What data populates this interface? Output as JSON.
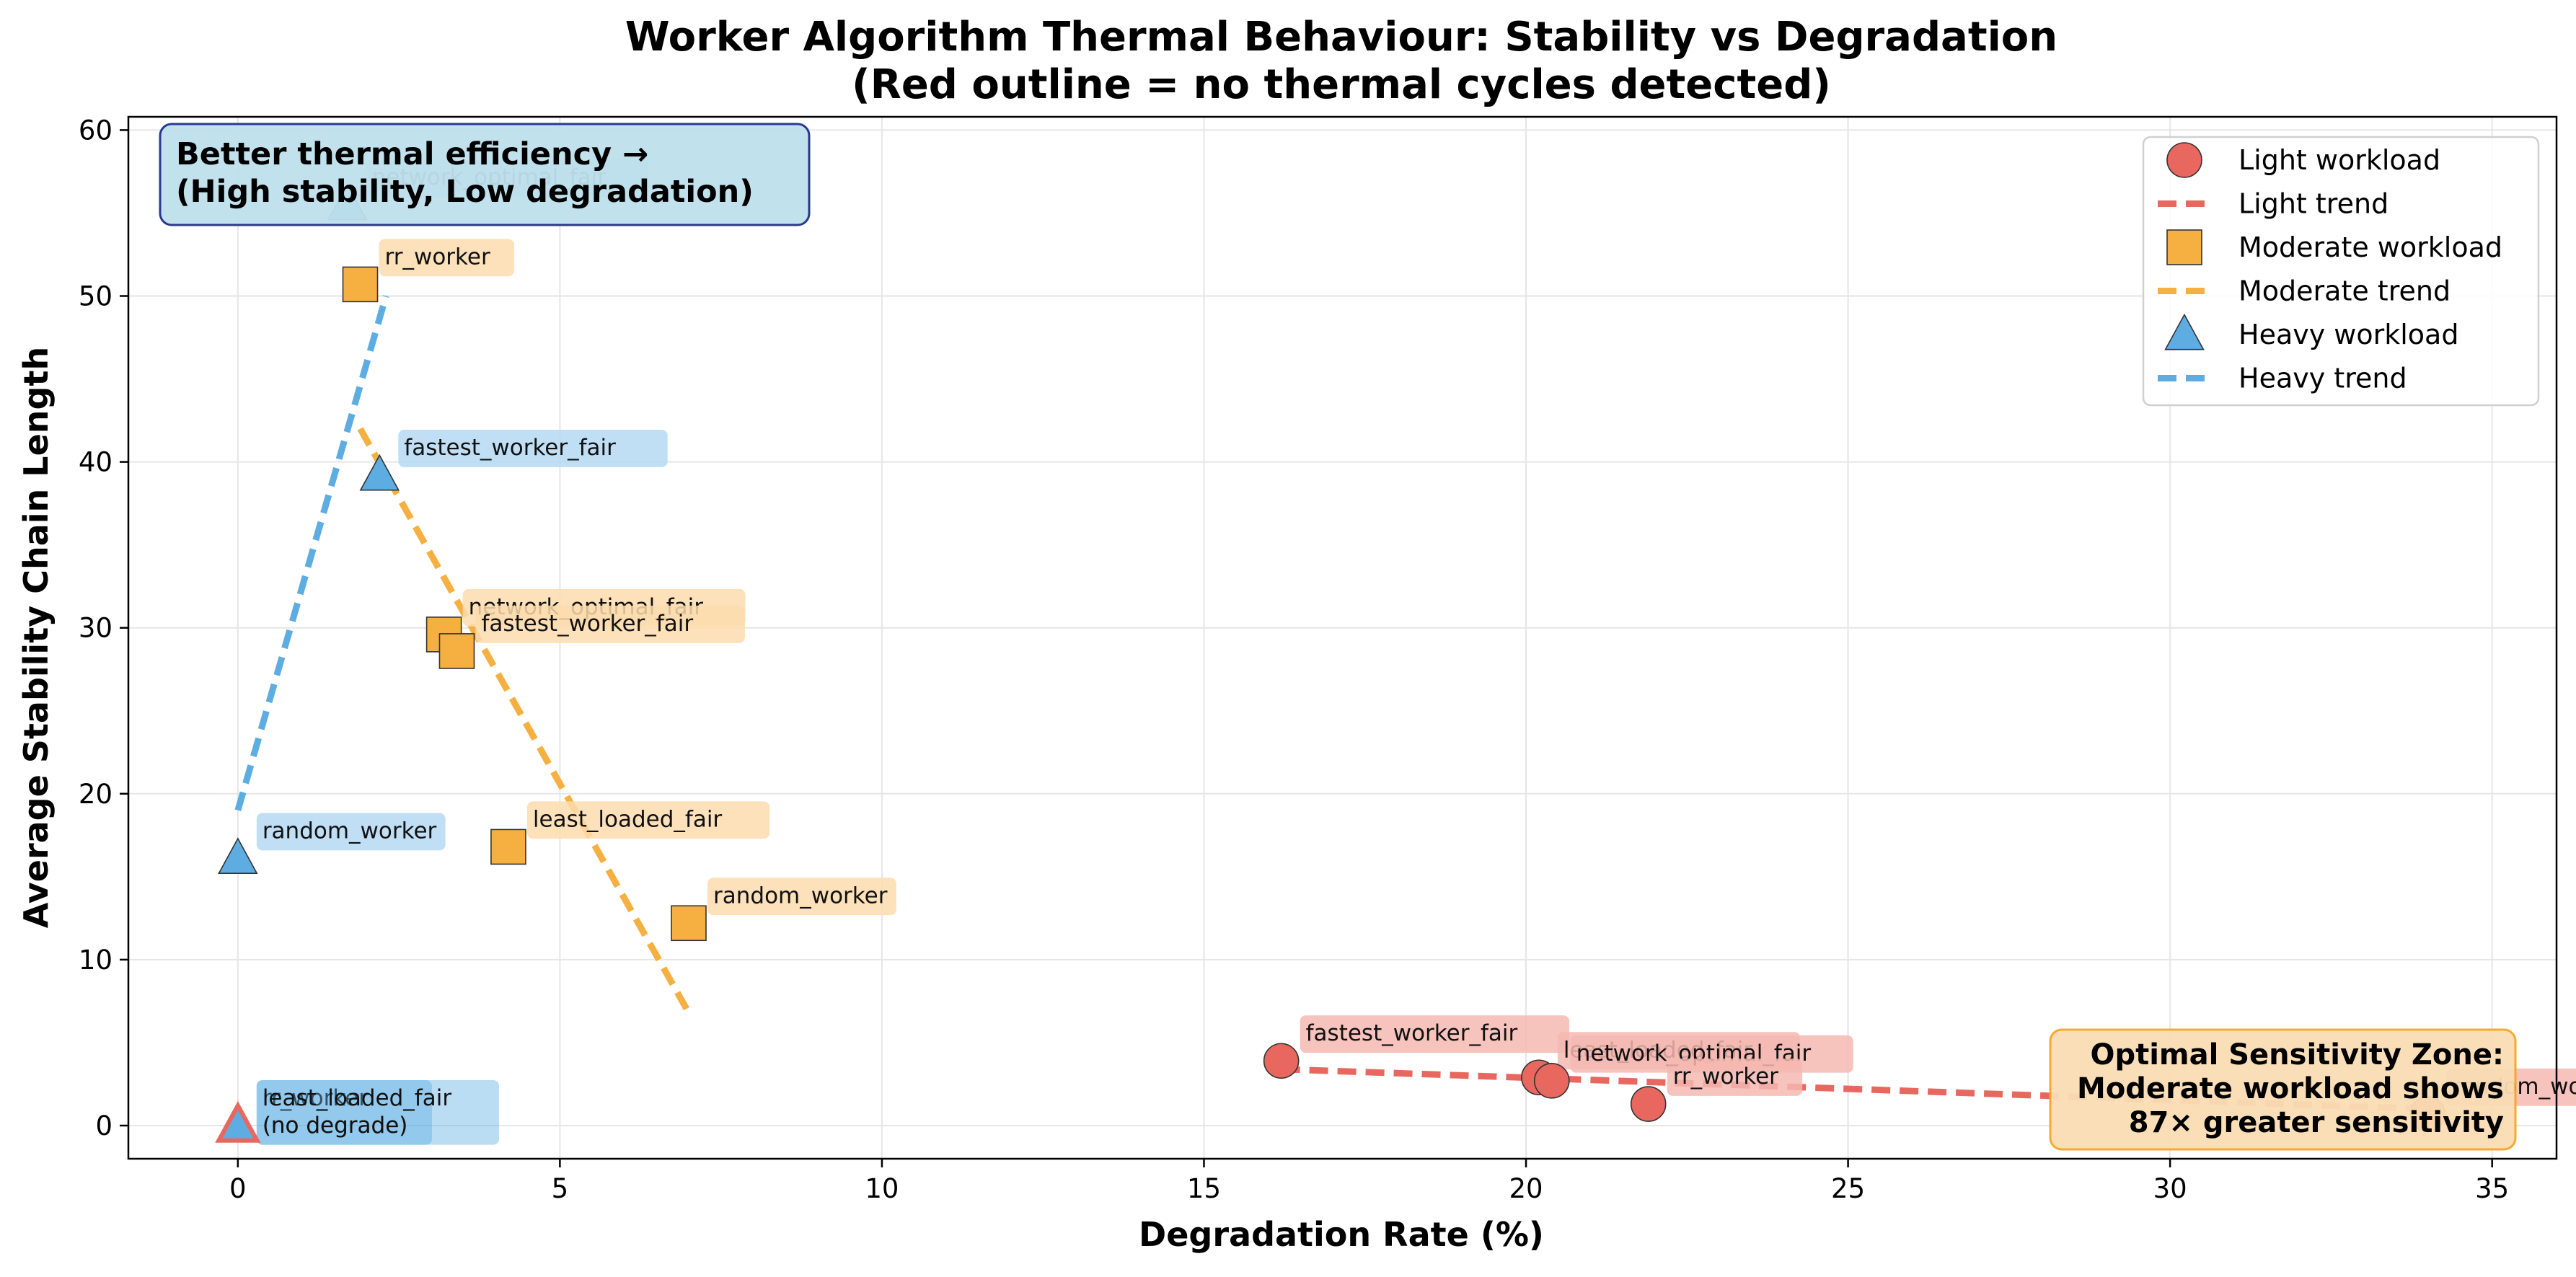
{
  "chart_data": {
    "type": "scatter",
    "title": "Worker Algorithm Thermal Behaviour: Stability vs Degradation",
    "subtitle": "(Red outline = no thermal cycles detected)",
    "xlabel": "Degradation Rate (%)",
    "ylabel": "Average Stability Chain Length",
    "xlim": [
      -1.7,
      36.0
    ],
    "ylim": [
      -2,
      60.8
    ],
    "xticks": [
      0,
      5,
      10,
      15,
      20,
      25,
      30,
      35
    ],
    "yticks": [
      0,
      10,
      20,
      30,
      40,
      50,
      60
    ],
    "grid": true,
    "legend_position": "top-right",
    "series": [
      {
        "name": "Light workload",
        "trend_name": "Light trend",
        "marker": "circle",
        "color": "#e8685f",
        "label_bg": "#f5b8b2",
        "points": [
          {
            "x": 16.2,
            "y": 3.9,
            "label": "fastest_worker_fair"
          },
          {
            "x": 20.2,
            "y": 2.9,
            "label": "least_loaded_fair"
          },
          {
            "x": 20.4,
            "y": 2.7,
            "label": "network_optimal_fair"
          },
          {
            "x": 21.9,
            "y": 1.3,
            "label": "rr_worker"
          },
          {
            "x": 34.0,
            "y": 0.7,
            "label": "random_worker"
          }
        ],
        "trend": {
          "x": [
            16.2,
            34.0
          ],
          "y": [
            3.4,
            1.0
          ]
        }
      },
      {
        "name": "Moderate workload",
        "trend_name": "Moderate trend",
        "marker": "square",
        "color": "#f5b041",
        "label_bg": "#fbdcae",
        "points": [
          {
            "x": 1.9,
            "y": 50.7,
            "label": "rr_worker"
          },
          {
            "x": 3.2,
            "y": 29.6,
            "label": "network_optimal_fair"
          },
          {
            "x": 3.4,
            "y": 28.6,
            "label": "fastest_worker_fair"
          },
          {
            "x": 4.2,
            "y": 16.8,
            "label": "least_loaded_fair"
          },
          {
            "x": 7.0,
            "y": 12.2,
            "label": "random_worker"
          }
        ],
        "trend": {
          "x": [
            1.9,
            7.0
          ],
          "y": [
            42.0,
            6.8
          ]
        }
      },
      {
        "name": "Heavy workload",
        "trend_name": "Heavy trend",
        "marker": "triangle",
        "color": "#5dade2",
        "label_bg": "#b5d9f3",
        "points": [
          {
            "x": 1.7,
            "y": 55.5,
            "label": "network_optimal_fair"
          },
          {
            "x": 2.2,
            "y": 39.2,
            "label": "fastest_worker_fair"
          },
          {
            "x": 0.0,
            "y": 16.1,
            "label": "random_worker"
          },
          {
            "x": 0.0,
            "y": 0.0,
            "label": "rr_worker",
            "note": "(no degrade)",
            "no_cycles": true
          },
          {
            "x": 0.0,
            "y": 0.0,
            "label": "least_loaded_fair",
            "note": "(no degrade)",
            "no_cycles": true
          }
        ],
        "trend": {
          "x": [
            0.0,
            2.3
          ],
          "y": [
            19.0,
            50.0
          ]
        }
      }
    ],
    "annotations": [
      {
        "id": "top",
        "lines": [
          "Better thermal efficiency →",
          "(High stability, Low degradation)"
        ],
        "bg": "#bee0ec",
        "border": "#1f2f8a"
      },
      {
        "id": "bottom",
        "lines": [
          "Optimal Sensitivity Zone:",
          "Moderate workload shows",
          "87× greater sensitivity"
        ],
        "bg": "#f9ddb5",
        "border": "#f5a623"
      }
    ],
    "no_cycle_outline_color": "#e8685f"
  }
}
